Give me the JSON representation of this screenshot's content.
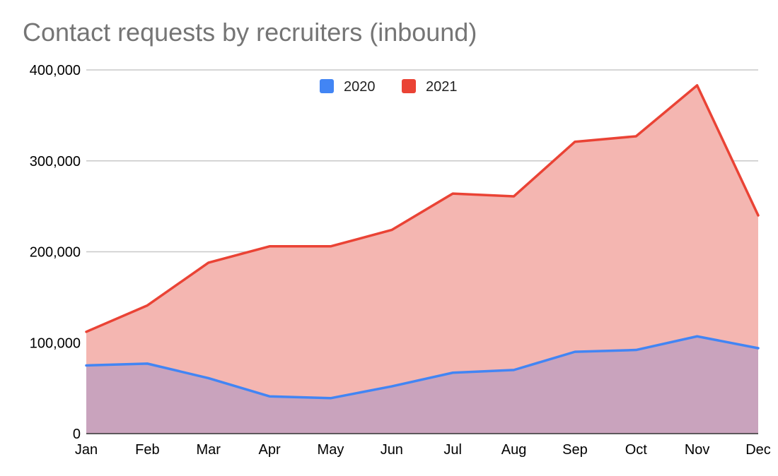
{
  "chart_data": {
    "type": "area",
    "title": "Contact requests by recruiters (inbound)",
    "categories": [
      "Jan",
      "Feb",
      "Mar",
      "Apr",
      "May",
      "Jun",
      "Jul",
      "Aug",
      "Sep",
      "Oct",
      "Nov",
      "Dec"
    ],
    "y_ticks": [
      "0",
      "100,000",
      "200,000",
      "300,000",
      "400,000"
    ],
    "ylim": [
      0,
      400000
    ],
    "grid": true,
    "legend_position": "top-center",
    "series": [
      {
        "name": "2021",
        "color": "#ea4335",
        "fill": "#f4b6b1",
        "values": [
          112000,
          141000,
          188000,
          206000,
          206000,
          224000,
          264000,
          261000,
          321000,
          327000,
          383000,
          240000
        ]
      },
      {
        "name": "2020",
        "color": "#4285f4",
        "fill": "#c9a3bd",
        "values": [
          75000,
          77000,
          61000,
          41000,
          39000,
          52000,
          67000,
          70000,
          90000,
          92000,
          107000,
          94000
        ]
      }
    ],
    "legend": [
      {
        "label": "2020",
        "color": "#4285f4"
      },
      {
        "label": "2021",
        "color": "#ea4335"
      }
    ]
  }
}
